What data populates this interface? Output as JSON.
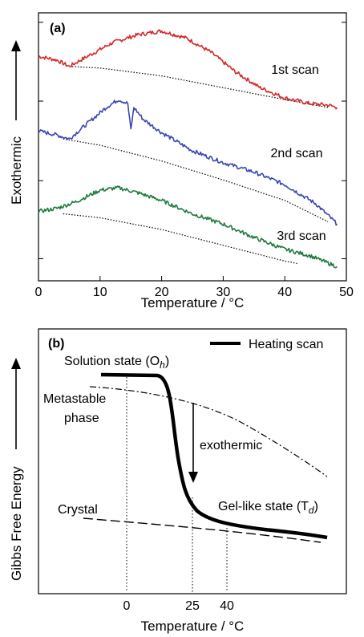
{
  "chart_data": [
    {
      "panel": "(a)",
      "type": "line",
      "xlabel": "Temperature / °C",
      "ylabel": "Exothermic",
      "xlim": [
        0,
        50
      ],
      "x_ticks": [
        "0",
        "10",
        "20",
        "30",
        "40",
        "50"
      ],
      "y_tick_labels_shown": false,
      "series": [
        {
          "name": "1st scan",
          "color": "#d42a2a",
          "x": [
            0,
            3,
            5,
            8,
            12,
            16,
            20,
            24,
            28,
            32,
            36,
            40,
            44,
            47,
            48.5
          ],
          "y": [
            2.55,
            2.5,
            2.42,
            2.55,
            2.72,
            2.82,
            2.87,
            2.78,
            2.6,
            2.35,
            2.15,
            2.02,
            1.95,
            1.93,
            1.9
          ],
          "baseline": {
            "x": [
              5,
              10,
              20,
              30,
              40,
              47
            ],
            "y": [
              2.42,
              2.4,
              2.3,
              2.15,
              2.0,
              1.9
            ]
          }
        },
        {
          "name": "2nd scan",
          "color": "#3a46b4",
          "x": [
            0,
            3,
            5,
            8,
            11,
            13,
            14.5,
            15,
            15.5,
            17,
            20,
            25,
            30,
            35,
            40,
            45,
            48.5
          ],
          "y": [
            1.6,
            1.55,
            1.5,
            1.7,
            1.9,
            2.0,
            1.95,
            1.62,
            1.9,
            1.75,
            1.58,
            1.35,
            1.2,
            1.08,
            0.92,
            0.68,
            0.42
          ],
          "baseline": {
            "x": [
              4,
              10,
              20,
              30,
              40,
              47
            ],
            "y": [
              1.5,
              1.42,
              1.22,
              0.98,
              0.72,
              0.45
            ]
          }
        },
        {
          "name": "3rd scan",
          "color": "#1e7a3e",
          "x": [
            0,
            3,
            6,
            10,
            13,
            16,
            20,
            25,
            30,
            35,
            40,
            44,
            48.5
          ],
          "y": [
            0.58,
            0.62,
            0.7,
            0.85,
            0.88,
            0.82,
            0.72,
            0.55,
            0.42,
            0.25,
            0.1,
            0.02,
            -0.12
          ],
          "baseline": {
            "x": [
              4,
              10,
              20,
              30,
              40,
              42
            ],
            "y": [
              0.55,
              0.5,
              0.35,
              0.15,
              -0.05,
              -0.08
            ]
          }
        }
      ]
    },
    {
      "panel": "(b)",
      "type": "line",
      "xlabel": "Temperature / °C",
      "ylabel": "Gibbs Free Energy",
      "x_ticks": [
        "0",
        "25",
        "40"
      ],
      "legend": {
        "label": "Heating scan",
        "position": "top-right"
      },
      "annotations": {
        "solution_state": "Solution state (O",
        "solution_state_sub": "h",
        "metastable_phase": "Metastable\nphase",
        "exothermic": "exothermic",
        "crystal": "Crystal",
        "gel_like_state": "Gel-like state (T",
        "gel_like_state_sub": "d",
        "close_paren": ")"
      }
    }
  ]
}
